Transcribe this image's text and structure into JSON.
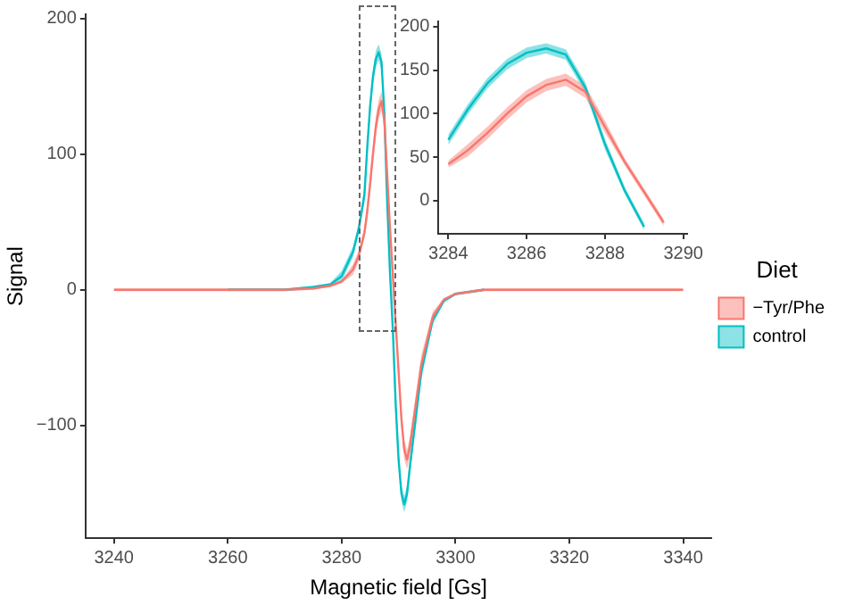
{
  "chart_data": [
    {
      "type": "line",
      "xlabel": "Magnetic field [Gs]",
      "ylabel": "Signal",
      "legend_title": "Diet",
      "legend": "right",
      "grid": false,
      "xlim": [
        3235,
        3345
      ],
      "xticks": [
        3240,
        3260,
        3280,
        3300,
        3320,
        3340
      ],
      "ylim": [
        -183,
        203
      ],
      "yticks": [
        -100,
        0,
        100,
        200
      ],
      "x": [
        3240,
        3250,
        3260,
        3270,
        3275,
        3278,
        3280,
        3282,
        3283,
        3284,
        3284.5,
        3285,
        3285.5,
        3286,
        3286.5,
        3287,
        3287.5,
        3288,
        3288.5,
        3289,
        3289.5,
        3290,
        3290.5,
        3291,
        3291.5,
        3292,
        3293,
        3294,
        3296,
        3298,
        3300,
        3305,
        3310,
        3320,
        3330,
        3340
      ],
      "series": [
        {
          "name": "−Tyr/Phe",
          "color": "#f8766d",
          "values": [
            0,
            0,
            0,
            0,
            1,
            3,
            6,
            15,
            25,
            42,
            58,
            78,
            100,
            120,
            133,
            139,
            125,
            85,
            45,
            10,
            -25,
            -60,
            -95,
            -118,
            -125,
            -115,
            -85,
            -55,
            -20,
            -7,
            -3,
            0,
            0,
            0,
            0,
            0
          ],
          "lower": [
            -1,
            -1,
            -1,
            -1,
            0,
            2,
            5,
            11,
            21,
            38,
            51,
            71,
            93,
            113,
            126,
            132,
            118,
            78,
            41,
            6,
            -29,
            -67,
            -102,
            -125,
            -132,
            -122,
            -92,
            -62,
            -24,
            -8,
            -4,
            -1,
            -1,
            -1,
            -1,
            -1
          ],
          "upper": [
            1,
            1,
            1,
            1,
            2,
            4,
            7,
            19,
            29,
            46,
            65,
            85,
            107,
            127,
            140,
            146,
            132,
            92,
            49,
            14,
            -21,
            -53,
            -88,
            -111,
            -118,
            -108,
            -78,
            -48,
            -16,
            -6,
            -2,
            1,
            1,
            1,
            1,
            1
          ]
        },
        {
          "name": "control",
          "color": "#00bfc4",
          "values": [
            null,
            null,
            0,
            0,
            2,
            4,
            10,
            28,
            45,
            70,
            105,
            135,
            157,
            170,
            175,
            168,
            130,
            65,
            12,
            -30,
            -85,
            -125,
            -150,
            -158,
            -150,
            -130,
            -95,
            -60,
            -22,
            -8,
            -3,
            0,
            null,
            null,
            null,
            null
          ],
          "lower": [
            null,
            null,
            -1,
            -1,
            1,
            3,
            6,
            24,
            41,
            64,
            99,
            129,
            151,
            164,
            169,
            162,
            124,
            59,
            8,
            -34,
            -91,
            -131,
            -156,
            -164,
            -156,
            -136,
            -101,
            -66,
            -26,
            -9,
            -4,
            -1,
            null,
            null,
            null,
            null
          ],
          "upper": [
            null,
            null,
            1,
            1,
            3,
            5,
            14,
            32,
            49,
            76,
            111,
            141,
            163,
            176,
            181,
            174,
            136,
            71,
            16,
            -26,
            -79,
            -119,
            -144,
            -152,
            -144,
            -124,
            -89,
            -54,
            -18,
            -7,
            -2,
            1,
            null,
            null,
            null,
            null
          ]
        }
      ]
    },
    {
      "type": "line",
      "grid": false,
      "xlim": [
        3283.75,
        3290.1
      ],
      "xticks": [
        3284,
        3286,
        3288,
        3290
      ],
      "ylim": [
        -38,
        206
      ],
      "yticks": [
        0,
        50,
        100,
        150,
        200
      ],
      "series": [
        {
          "color": "#f8766d",
          "x": [
            3284,
            3284.5,
            3285,
            3285.5,
            3286,
            3286.5,
            3287,
            3287.5,
            3288,
            3288.5,
            3289,
            3289.5
          ],
          "values": [
            42,
            58,
            78,
            100,
            120,
            133,
            139,
            125,
            85,
            45,
            10,
            -25
          ],
          "lower": [
            38,
            51,
            71,
            93,
            113,
            126,
            132,
            118,
            78,
            41,
            6,
            -29
          ],
          "upper": [
            46,
            65,
            85,
            107,
            127,
            140,
            146,
            132,
            92,
            49,
            14,
            -21
          ]
        },
        {
          "color": "#00bfc4",
          "x": [
            3284,
            3284.5,
            3285,
            3285.5,
            3286,
            3286.5,
            3287,
            3287.5,
            3288,
            3288.5,
            3289
          ],
          "values": [
            70,
            105,
            135,
            157,
            170,
            175,
            168,
            130,
            65,
            12,
            -30
          ],
          "lower": [
            64,
            99,
            129,
            151,
            164,
            169,
            162,
            124,
            59,
            8,
            -34
          ],
          "upper": [
            76,
            111,
            141,
            163,
            176,
            181,
            174,
            136,
            71,
            16,
            -26
          ]
        }
      ]
    }
  ]
}
